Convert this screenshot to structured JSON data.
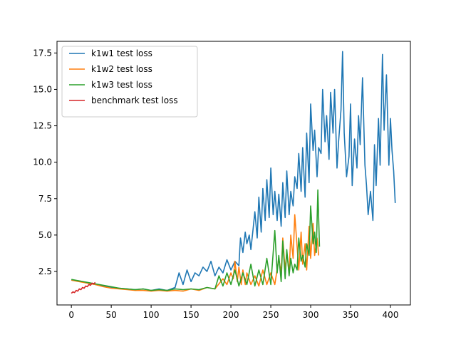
{
  "chart_data": {
    "type": "line",
    "title": "",
    "xlabel": "",
    "ylabel": "",
    "xlim": [
      -18,
      425
    ],
    "ylim": [
      0.2,
      18.3
    ],
    "xticks": [
      0,
      50,
      100,
      150,
      200,
      250,
      300,
      350,
      400
    ],
    "yticks": [
      2.5,
      5.0,
      7.5,
      10.0,
      12.5,
      15.0,
      17.5
    ],
    "xtick_labels": [
      "0",
      "50",
      "100",
      "150",
      "200",
      "250",
      "300",
      "350",
      "400"
    ],
    "ytick_labels": [
      "2.5",
      "5.0",
      "7.5",
      "10.0",
      "12.5",
      "15.0",
      "17.5"
    ],
    "grid": false,
    "legend_position": "upper-left",
    "series": [
      {
        "name": "k1w1 test loss",
        "color": "#1f77b4",
        "x": [
          0,
          10,
          20,
          30,
          40,
          50,
          60,
          70,
          80,
          90,
          100,
          110,
          120,
          130,
          135,
          140,
          145,
          150,
          155,
          160,
          165,
          170,
          175,
          180,
          185,
          190,
          195,
          200,
          205,
          210,
          212,
          215,
          218,
          220,
          223,
          225,
          228,
          230,
          233,
          235,
          238,
          240,
          243,
          245,
          248,
          250,
          253,
          255,
          258,
          260,
          263,
          265,
          268,
          270,
          273,
          275,
          278,
          280,
          283,
          285,
          288,
          290,
          293,
          295,
          298,
          300,
          303,
          305,
          308,
          310,
          313,
          315,
          318,
          320,
          323,
          325,
          328,
          330,
          333,
          335,
          338,
          340,
          342,
          345,
          348,
          350,
          352,
          355,
          358,
          360,
          362,
          365,
          368,
          370,
          372,
          375,
          378,
          380,
          382,
          385,
          387,
          390,
          392,
          395,
          398,
          400,
          402,
          404,
          406
        ],
        "y": [
          1.9,
          1.85,
          1.7,
          1.6,
          1.5,
          1.4,
          1.35,
          1.3,
          1.25,
          1.3,
          1.2,
          1.3,
          1.2,
          1.4,
          2.4,
          1.6,
          2.6,
          1.8,
          2.4,
          2.2,
          2.8,
          2.5,
          3.2,
          2.2,
          2.8,
          2.4,
          3.3,
          2.6,
          3.2,
          2.9,
          4.8,
          3.8,
          5.2,
          4.4,
          5.0,
          4.0,
          5.5,
          6.6,
          4.8,
          7.6,
          5.2,
          8.2,
          6.0,
          8.8,
          6.2,
          9.6,
          6.4,
          8.0,
          6.0,
          7.8,
          5.6,
          8.6,
          6.2,
          9.4,
          6.4,
          8.0,
          7.0,
          9.0,
          8.2,
          10.6,
          8.0,
          11.0,
          7.6,
          12.0,
          8.6,
          14.0,
          10.8,
          12.2,
          9.0,
          11.0,
          10.6,
          15.0,
          11.4,
          13.2,
          10.2,
          14.8,
          12.0,
          15.0,
          9.6,
          11.4,
          13.6,
          17.6,
          12.0,
          9.0,
          10.4,
          14.0,
          8.4,
          11.6,
          9.6,
          13.2,
          11.2,
          15.8,
          9.8,
          8.4,
          6.4,
          8.0,
          6.0,
          11.2,
          8.4,
          13.0,
          9.8,
          17.4,
          12.2,
          16.0,
          9.8,
          13.0,
          10.8,
          9.4,
          7.2
        ]
      },
      {
        "name": "k1w2 test loss",
        "color": "#ff7f0e",
        "x": [
          0,
          10,
          20,
          30,
          40,
          50,
          60,
          70,
          80,
          90,
          100,
          110,
          120,
          130,
          140,
          150,
          160,
          170,
          180,
          190,
          195,
          200,
          203,
          205,
          208,
          210,
          213,
          215,
          218,
          220,
          225,
          230,
          235,
          240,
          245,
          250,
          255,
          260,
          263,
          265,
          268,
          270,
          273,
          275,
          278,
          280,
          283,
          285,
          288,
          290,
          293,
          295,
          298,
          300,
          303,
          305,
          308,
          310
        ],
        "y": [
          1.9,
          1.8,
          1.7,
          1.6,
          1.45,
          1.35,
          1.3,
          1.25,
          1.2,
          1.2,
          1.15,
          1.2,
          1.15,
          1.2,
          1.15,
          1.3,
          1.2,
          1.4,
          1.3,
          2.0,
          1.6,
          2.4,
          2.0,
          3.2,
          1.8,
          2.8,
          1.6,
          2.6,
          1.6,
          2.4,
          1.6,
          2.2,
          1.5,
          2.6,
          1.6,
          2.4,
          1.6,
          3.4,
          2.4,
          4.8,
          2.6,
          3.8,
          2.4,
          5.0,
          3.4,
          6.4,
          4.2,
          2.6,
          5.2,
          3.0,
          4.4,
          2.6,
          5.6,
          3.4,
          5.8,
          3.6,
          4.8,
          3.6
        ]
      },
      {
        "name": "k1w3 test loss",
        "color": "#2ca02c",
        "x": [
          0,
          10,
          20,
          30,
          40,
          50,
          60,
          70,
          80,
          90,
          100,
          110,
          120,
          130,
          140,
          150,
          160,
          170,
          180,
          185,
          190,
          195,
          200,
          205,
          210,
          215,
          220,
          225,
          230,
          235,
          240,
          245,
          250,
          255,
          258,
          260,
          263,
          265,
          268,
          270,
          273,
          275,
          278,
          280,
          283,
          285,
          288,
          290,
          293,
          295,
          298,
          300,
          303,
          305,
          307,
          309,
          311
        ],
        "y": [
          1.95,
          1.85,
          1.75,
          1.65,
          1.55,
          1.45,
          1.35,
          1.3,
          1.25,
          1.3,
          1.2,
          1.25,
          1.2,
          1.3,
          1.25,
          1.3,
          1.25,
          1.4,
          1.3,
          2.2,
          1.5,
          2.4,
          1.6,
          2.6,
          1.5,
          2.4,
          1.6,
          3.0,
          1.5,
          2.6,
          1.6,
          3.4,
          1.6,
          5.3,
          2.4,
          3.6,
          1.8,
          4.6,
          2.0,
          4.0,
          2.2,
          3.4,
          2.4,
          3.0,
          2.6,
          4.8,
          3.2,
          3.6,
          2.8,
          4.4,
          3.6,
          7.0,
          4.4,
          5.2,
          3.8,
          8.1,
          4.2
        ]
      },
      {
        "name": "benchmark test loss",
        "color": "#d62728",
        "x": [
          0,
          2,
          4,
          6,
          8,
          10,
          12,
          14,
          16,
          18,
          20,
          22,
          24,
          26,
          28,
          30
        ],
        "y": [
          1.0,
          1.1,
          1.05,
          1.2,
          1.15,
          1.3,
          1.25,
          1.4,
          1.35,
          1.5,
          1.45,
          1.6,
          1.55,
          1.7,
          1.65,
          1.75
        ]
      }
    ]
  }
}
